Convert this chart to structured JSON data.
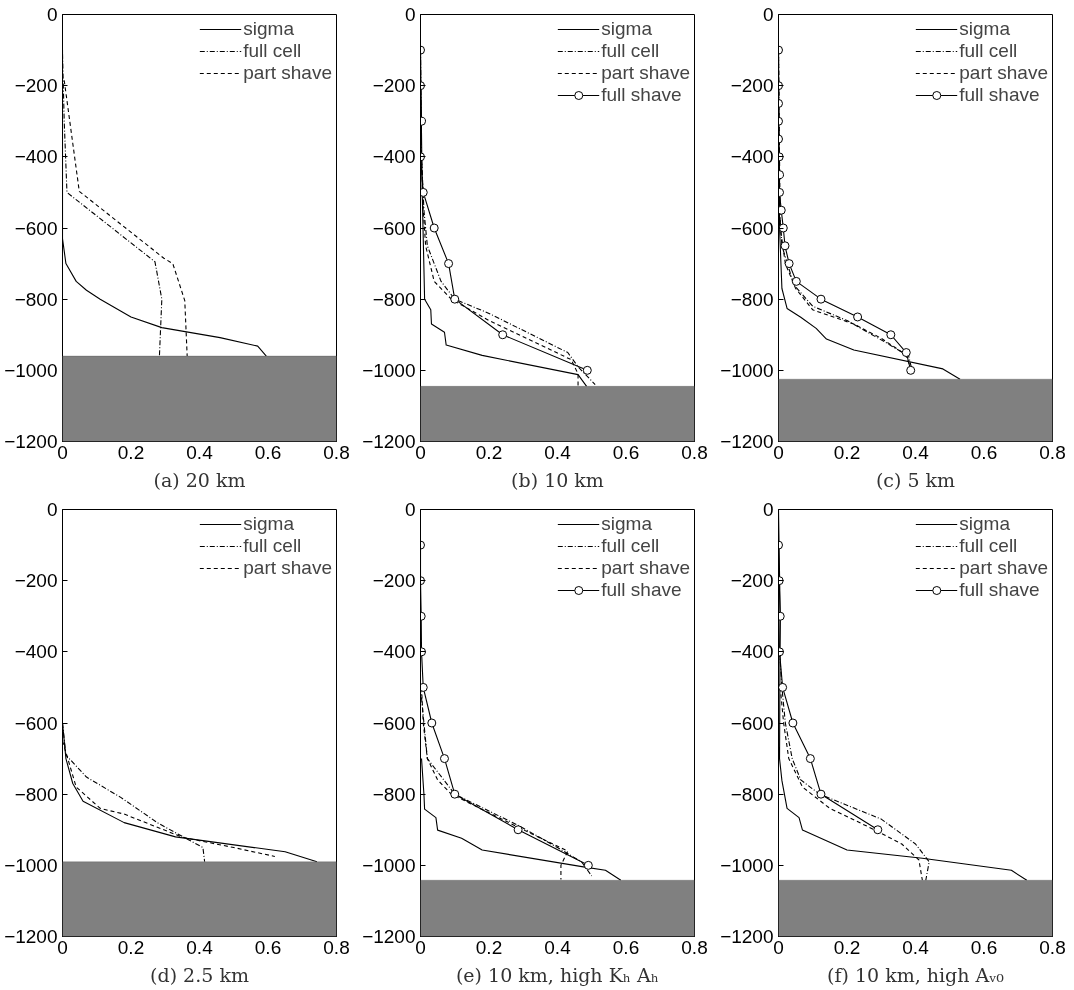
{
  "chart_data": [
    {
      "type": "line",
      "title": "(a) 20 km",
      "xlim": [
        0,
        0.8
      ],
      "ylim": [
        -1200,
        0
      ],
      "xticks": [
        0,
        0.2,
        0.4,
        0.6,
        0.8
      ],
      "yticks": [
        0,
        {
          "value": -200,
          "label": "−200"
        },
        {
          "value": -400,
          "label": "−400"
        },
        {
          "value": -600,
          "label": "−600"
        },
        {
          "value": -800,
          "label": "−800"
        },
        {
          "value": -1000,
          "label": "−1000"
        },
        {
          "value": -1200,
          "label": "−1200"
        }
      ],
      "legend": "top right",
      "bands": [
        {
          "axis": "y",
          "from": -1200,
          "to": -960,
          "color": "#808080"
        }
      ],
      "series": [
        {
          "name": "sigma",
          "color": "#000000",
          "line_style": "solid",
          "marker": "none",
          "x": [
            0,
            0,
            0.01,
            0.04,
            0.07,
            0.11,
            0.2,
            0.29,
            0.46,
            0.57,
            0.595
          ],
          "values": [
            -100,
            -630,
            -700,
            -750,
            -775,
            -800,
            -850,
            -880,
            -908,
            -932,
            -960
          ]
        },
        {
          "name": "full cell",
          "color": "#000000",
          "line_style": "dashdot",
          "marker": "none",
          "x": [
            0,
            0.005,
            0.013,
            0.27,
            0.29,
            0.283
          ],
          "values": [
            -110,
            -300,
            -500,
            -695,
            -800,
            -960
          ]
        },
        {
          "name": "part shave",
          "color": "#000000",
          "line_style": "dashed",
          "marker": "none",
          "x": [
            0.005,
            0.049,
            0.296,
            0.322,
            0.357,
            0.364
          ],
          "values": [
            -185,
            -497,
            -685,
            -700,
            -804,
            -960
          ]
        }
      ]
    },
    {
      "type": "line",
      "title": "(b) 10 km",
      "xlim": [
        0,
        0.8
      ],
      "ylim": [
        -1200,
        0
      ],
      "xticks": [
        0,
        0.2,
        0.4,
        0.6,
        0.8
      ],
      "yticks": [
        0,
        {
          "value": -200,
          "label": "−200"
        },
        {
          "value": -400,
          "label": "−400"
        },
        {
          "value": -600,
          "label": "−600"
        },
        {
          "value": -800,
          "label": "−800"
        },
        {
          "value": -1000,
          "label": "−1000"
        },
        {
          "value": -1200,
          "label": "−1200"
        }
      ],
      "legend": "top right",
      "bands": [
        {
          "axis": "y",
          "from": -1200,
          "to": -1045,
          "color": "#808080"
        }
      ],
      "series": [
        {
          "name": "sigma",
          "color": "#000000",
          "line_style": "solid",
          "marker": "none",
          "x": [
            0,
            0.005,
            0.012,
            0.03,
            0.032,
            0.07,
            0.075,
            0.18,
            0.46,
            0.485
          ],
          "values": [
            -100,
            -500,
            -800,
            -830,
            -870,
            -893,
            -929,
            -958,
            -1012,
            -1045
          ]
        },
        {
          "name": "full cell",
          "color": "#000000",
          "line_style": "dashdot",
          "marker": "none",
          "x": [
            0,
            0.003,
            0.01,
            0.02,
            0.06,
            0.1,
            0.2,
            0.43,
            0.46,
            0.51
          ],
          "values": [
            -100,
            -400,
            -550,
            -650,
            -750,
            -800,
            -840,
            -950,
            -990,
            -1040
          ]
        },
        {
          "name": "part shave",
          "color": "#000000",
          "line_style": "dashed",
          "marker": "none",
          "x": [
            0.003,
            0.008,
            0.015,
            0.04,
            0.09,
            0.2,
            0.44,
            0.46,
            0.46
          ],
          "values": [
            -400,
            -550,
            -650,
            -750,
            -800,
            -860,
            -970,
            -1010,
            -1045
          ]
        },
        {
          "name": "full shave",
          "color": "#000000",
          "line_style": "solid",
          "marker": "circle",
          "x": [
            0,
            0,
            0.003,
            0,
            0.008,
            0.04,
            0.082,
            0.1,
            0.24,
            0.487
          ],
          "values": [
            -100,
            -200,
            -300,
            -400,
            -500,
            -600,
            -700,
            -800,
            -900,
            -1000
          ]
        }
      ]
    },
    {
      "type": "line",
      "title": "(c) 5 km",
      "xlim": [
        0,
        0.8
      ],
      "ylim": [
        -1200,
        0
      ],
      "xticks": [
        0,
        0.2,
        0.4,
        0.6,
        0.8
      ],
      "yticks": [
        0,
        {
          "value": -200,
          "label": "−200"
        },
        {
          "value": -400,
          "label": "−400"
        },
        {
          "value": -600,
          "label": "−600"
        },
        {
          "value": -800,
          "label": "−800"
        },
        {
          "value": -1000,
          "label": "−1000"
        },
        {
          "value": -1200,
          "label": "−1200"
        }
      ],
      "legend": "top right",
      "bands": [
        {
          "axis": "y",
          "from": -1200,
          "to": -1025,
          "color": "#808080"
        }
      ],
      "series": [
        {
          "name": "sigma",
          "color": "#000000",
          "line_style": "solid",
          "marker": "none",
          "x": [
            0,
            0.003,
            0.01,
            0.025,
            0.065,
            0.11,
            0.14,
            0.22,
            0.48,
            0.53
          ],
          "values": [
            -100,
            -600,
            -770,
            -826,
            -851,
            -882,
            -912,
            -943,
            -996,
            -1025
          ]
        },
        {
          "name": "full cell",
          "color": "#000000",
          "line_style": "dashdot",
          "marker": "none",
          "x": [
            0,
            0.003,
            0.01,
            0.045,
            0.1,
            0.2,
            0.31,
            0.38,
            0.39
          ],
          "values": [
            -100,
            -550,
            -650,
            -760,
            -820,
            -860,
            -920,
            -960,
            -1000
          ]
        },
        {
          "name": "part shave",
          "color": "#000000",
          "line_style": "dashed",
          "marker": "none",
          "x": [
            0,
            0.005,
            0.02,
            0.05,
            0.1,
            0.22,
            0.3,
            0.37,
            0.385
          ],
          "values": [
            -100,
            -600,
            -700,
            -770,
            -830,
            -870,
            -910,
            -955,
            -990
          ]
        },
        {
          "name": "full shave",
          "color": "#000000",
          "line_style": "solid",
          "marker": "circle",
          "x": [
            0,
            0,
            0,
            0,
            0,
            0.002,
            0.003,
            0.003,
            0.008,
            0.014,
            0.019,
            0.031,
            0.052,
            0.124,
            0.231,
            0.328,
            0.373,
            0.386
          ],
          "values": [
            -100,
            -200,
            -250,
            -300,
            -350,
            -400,
            -450,
            -500,
            -550,
            -600,
            -650,
            -700,
            -750,
            -800,
            -850,
            -900,
            -950,
            -1000
          ]
        }
      ]
    },
    {
      "type": "line",
      "title": "(d) 2.5 km",
      "xlim": [
        0,
        0.8
      ],
      "ylim": [
        -1200,
        0
      ],
      "xticks": [
        0,
        0.2,
        0.4,
        0.6,
        0.8
      ],
      "yticks": [
        0,
        {
          "value": -200,
          "label": "−200"
        },
        {
          "value": -400,
          "label": "−400"
        },
        {
          "value": -600,
          "label": "−600"
        },
        {
          "value": -800,
          "label": "−800"
        },
        {
          "value": -1000,
          "label": "−1000"
        },
        {
          "value": -1200,
          "label": "−1200"
        }
      ],
      "legend": "top right",
      "bands": [
        {
          "axis": "y",
          "from": -1200,
          "to": -990,
          "color": "#808080"
        }
      ],
      "series": [
        {
          "name": "sigma",
          "color": "#000000",
          "line_style": "solid",
          "marker": "none",
          "x": [
            0,
            0.01,
            0.03,
            0.06,
            0.18,
            0.33,
            0.65,
            0.743
          ],
          "values": [
            -600,
            -700,
            -770,
            -820,
            -880,
            -920,
            -962,
            -990
          ]
        },
        {
          "name": "full cell",
          "color": "#000000",
          "line_style": "dashdot",
          "marker": "none",
          "x": [
            0,
            0.01,
            0.07,
            0.17,
            0.28,
            0.36,
            0.41,
            0.415
          ],
          "values": [
            -600,
            -690,
            -752,
            -809,
            -882,
            -924,
            -950,
            -990
          ]
        },
        {
          "name": "part shave",
          "color": "#000000",
          "line_style": "dashed",
          "marker": "none",
          "x": [
            0,
            0.04,
            0.11,
            0.18,
            0.35,
            0.5,
            0.62
          ],
          "values": [
            -650,
            -780,
            -840,
            -856,
            -921,
            -950,
            -975
          ]
        }
      ]
    },
    {
      "type": "line",
      "title": "(e) 10 km, high Kₕ Aₕ",
      "xlim": [
        0,
        0.8
      ],
      "ylim": [
        -1200,
        0
      ],
      "xticks": [
        0,
        0.2,
        0.4,
        0.6,
        0.8
      ],
      "yticks": [
        0,
        {
          "value": -200,
          "label": "−200"
        },
        {
          "value": -400,
          "label": "−400"
        },
        {
          "value": -600,
          "label": "−600"
        },
        {
          "value": -800,
          "label": "−800"
        },
        {
          "value": -1000,
          "label": "−1000"
        },
        {
          "value": -1200,
          "label": "−1200"
        }
      ],
      "legend": "top right",
      "bands": [
        {
          "axis": "y",
          "from": -1200,
          "to": -1042,
          "color": "#808080"
        }
      ],
      "series": [
        {
          "name": "sigma",
          "color": "#000000",
          "line_style": "solid",
          "marker": "none",
          "x": [
            0.003,
            0.01,
            0.012,
            0.045,
            0.05,
            0.12,
            0.18,
            0.48,
            0.54,
            0.585
          ],
          "values": [
            -700,
            -800,
            -842,
            -866,
            -901,
            -924,
            -957,
            -1005,
            -1014,
            -1042
          ]
        },
        {
          "name": "full cell",
          "color": "#000000",
          "line_style": "dashdot",
          "marker": "none",
          "x": [
            0,
            0.01,
            0.02,
            0.1,
            0.29,
            0.4,
            0.47,
            0.5
          ],
          "values": [
            -500,
            -600,
            -700,
            -800,
            -890,
            -950,
            -990,
            -1030
          ]
        },
        {
          "name": "part shave",
          "color": "#000000",
          "line_style": "dashed",
          "marker": "none",
          "x": [
            0.003,
            0.008,
            0.02,
            0.05,
            0.09,
            0.3,
            0.43,
            0.41,
            0.41
          ],
          "values": [
            -500,
            -600,
            -700,
            -760,
            -800,
            -900,
            -960,
            -1000,
            -1040
          ]
        },
        {
          "name": "full shave",
          "color": "#000000",
          "line_style": "solid",
          "marker": "circle",
          "x": [
            0,
            0,
            0.002,
            0.003,
            0.008,
            0.033,
            0.07,
            0.1,
            0.285,
            0.49
          ],
          "values": [
            -100,
            -200,
            -300,
            -400,
            -500,
            -600,
            -700,
            -800,
            -900,
            -1000
          ]
        }
      ]
    },
    {
      "type": "line",
      "title": "(f) 10 km, high Aᵥ₀",
      "xlim": [
        0,
        0.8
      ],
      "ylim": [
        -1200,
        0
      ],
      "xticks": [
        0,
        0.2,
        0.4,
        0.6,
        0.8
      ],
      "yticks": [
        0,
        {
          "value": -200,
          "label": "−200"
        },
        {
          "value": -400,
          "label": "−400"
        },
        {
          "value": -600,
          "label": "−600"
        },
        {
          "value": -800,
          "label": "−800"
        },
        {
          "value": -1000,
          "label": "−1000"
        },
        {
          "value": -1200,
          "label": "−1200"
        }
      ],
      "legend": "top right",
      "bands": [
        {
          "axis": "y",
          "from": -1200,
          "to": -1042,
          "color": "#808080"
        }
      ],
      "series": [
        {
          "name": "sigma",
          "color": "#000000",
          "line_style": "solid",
          "marker": "none",
          "x": [
            0,
            0.005,
            0.003,
            0.01,
            0.025,
            0.06,
            0.07,
            0.2,
            0.42,
            0.68,
            0.725
          ],
          "values": [
            0,
            -300,
            -700,
            -762,
            -840,
            -866,
            -901,
            -957,
            -980,
            -1014,
            -1042
          ]
        },
        {
          "name": "full cell",
          "color": "#000000",
          "line_style": "dashdot",
          "marker": "none",
          "x": [
            0.003,
            0.01,
            0.02,
            0.04,
            0.065,
            0.12,
            0.3,
            0.4,
            0.44,
            0.43
          ],
          "values": [
            -400,
            -500,
            -600,
            -700,
            -760,
            -800,
            -870,
            -940,
            -990,
            -1042
          ]
        },
        {
          "name": "part shave",
          "color": "#000000",
          "line_style": "dashed",
          "marker": "none",
          "x": [
            0.005,
            0.015,
            0.03,
            0.07,
            0.15,
            0.28,
            0.36,
            0.41,
            0.42
          ],
          "values": [
            -500,
            -600,
            -700,
            -780,
            -840,
            -900,
            -940,
            -985,
            -1042
          ]
        },
        {
          "name": "full shave",
          "color": "#000000",
          "line_style": "solid",
          "marker": "circle",
          "x": [
            0,
            0.002,
            0.005,
            0.003,
            0.012,
            0.042,
            0.093,
            0.124,
            0.29
          ],
          "values": [
            -100,
            -200,
            -300,
            -400,
            -500,
            -600,
            -700,
            -800,
            -900
          ]
        }
      ]
    }
  ]
}
